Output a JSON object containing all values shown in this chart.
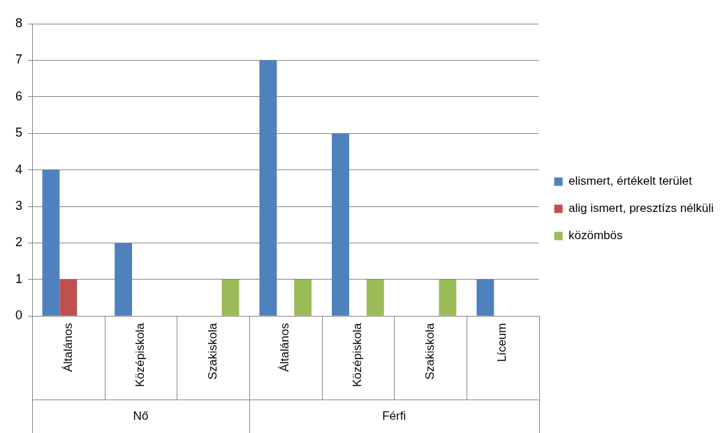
{
  "chart_data": {
    "type": "bar",
    "categories": [
      "Általános",
      "Középiskola",
      "Szakiskola",
      "Általános",
      "Középiskola",
      "Szakiskola",
      "Líceum"
    ],
    "series": [
      {
        "name": "elismert, értékelt terület",
        "color": "#4f81bd",
        "values": [
          4,
          2,
          null,
          7,
          5,
          null,
          1
        ]
      },
      {
        "name": "alig ismert, presztízs nélküli",
        "color": "#c0504d",
        "values": [
          1,
          null,
          null,
          null,
          null,
          null,
          null
        ]
      },
      {
        "name": "közömbös",
        "color": "#9bbb59",
        "values": [
          null,
          null,
          1,
          1,
          1,
          1,
          null
        ]
      }
    ],
    "annotations": [
      "Nő",
      "Férfi"
    ],
    "ylim": [
      0,
      8
    ],
    "yticks": [
      0,
      1,
      2,
      3,
      4,
      5,
      6,
      7,
      8
    ],
    "grid": "y",
    "legend": "right"
  }
}
